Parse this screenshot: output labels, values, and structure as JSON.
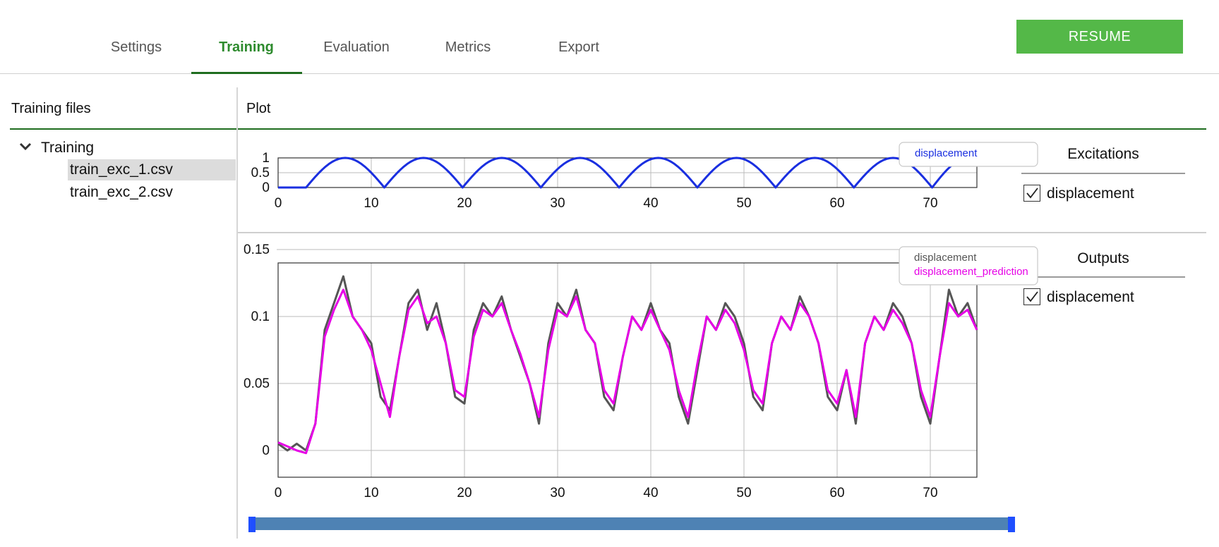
{
  "tabs": [
    {
      "label": "Settings",
      "active": false
    },
    {
      "label": "Training",
      "active": true
    },
    {
      "label": "Evaluation",
      "active": false
    },
    {
      "label": "Metrics",
      "active": false
    },
    {
      "label": "Export",
      "active": false
    }
  ],
  "resume_button": "RESUME",
  "left_panel": {
    "title": "Training files",
    "tree": {
      "root": "Training",
      "files": [
        "train_exc_1.csv",
        "train_exc_2.csv"
      ],
      "selected": "train_exc_1.csv"
    }
  },
  "plot_panel": {
    "title": "Plot"
  },
  "excitations": {
    "title": "Excitations",
    "items": [
      {
        "label": "displacement",
        "checked": true
      }
    ]
  },
  "outputs": {
    "title": "Outputs",
    "items": [
      {
        "label": "displacement",
        "checked": true
      }
    ]
  },
  "colors": {
    "accent": "#54b848",
    "tab_active": "#2e8b2e",
    "series_excitation": "#1a2fe0",
    "series_output": "#555555",
    "series_prediction": "#e600e6"
  },
  "slider": {
    "start": 0,
    "end": 1
  },
  "chart_data": [
    {
      "type": "line",
      "title": "",
      "xlabel": "",
      "ylabel": "",
      "xlim": [
        0,
        75
      ],
      "ylim": [
        0,
        1
      ],
      "xticks": [
        "0",
        "10",
        "20",
        "30",
        "40",
        "50",
        "60",
        "70"
      ],
      "yticks": [
        "0",
        "0.5",
        "1"
      ],
      "legend": [
        "displacement"
      ],
      "legend_position": "top-right",
      "series": [
        {
          "name": "displacement",
          "x": [
            0,
            3,
            7.2,
            11.4,
            15.6,
            19.8,
            24.0,
            28.2,
            32.4,
            36.6,
            40.8,
            45.0,
            49.2,
            53.4,
            57.6,
            61.8,
            66.0,
            70.2,
            74.4
          ],
          "values": [
            0,
            0,
            1,
            0,
            1,
            0,
            1,
            0,
            1,
            0,
            1,
            0,
            1,
            0,
            1,
            0,
            1,
            0,
            1
          ]
        }
      ]
    },
    {
      "type": "line",
      "title": "",
      "xlabel": "",
      "ylabel": "",
      "xlim": [
        0,
        75
      ],
      "ylim": [
        -0.02,
        0.14
      ],
      "xticks": [
        "0",
        "10",
        "20",
        "30",
        "40",
        "50",
        "60",
        "70"
      ],
      "yticks": [
        "0",
        "0.05",
        "0.1",
        "0.15"
      ],
      "legend": [
        "displacement",
        "displacement_prediction"
      ],
      "legend_position": "top-right",
      "series": [
        {
          "name": "displacement",
          "x": [
            0,
            1,
            2,
            3,
            4,
            5,
            6,
            7,
            8,
            9,
            10,
            11,
            12,
            13,
            14,
            15,
            16,
            17,
            18,
            19,
            20,
            21,
            22,
            23,
            24,
            25,
            26,
            27,
            28,
            29,
            30,
            31,
            32,
            33,
            34,
            35,
            36,
            37,
            38,
            39,
            40,
            41,
            42,
            43,
            44,
            45,
            46,
            47,
            48,
            49,
            50,
            51,
            52,
            53,
            54,
            55,
            56,
            57,
            58,
            59,
            60,
            61,
            62,
            63,
            64,
            65,
            66,
            67,
            68,
            69,
            70,
            71,
            72,
            73,
            74,
            75
          ],
          "values": [
            0.005,
            0.0,
            0.005,
            0.0,
            0.02,
            0.09,
            0.11,
            0.13,
            0.1,
            0.09,
            0.08,
            0.04,
            0.03,
            0.07,
            0.11,
            0.12,
            0.09,
            0.11,
            0.08,
            0.04,
            0.035,
            0.09,
            0.11,
            0.1,
            0.115,
            0.09,
            0.07,
            0.05,
            0.02,
            0.08,
            0.11,
            0.1,
            0.12,
            0.09,
            0.08,
            0.04,
            0.03,
            0.07,
            0.1,
            0.09,
            0.11,
            0.09,
            0.08,
            0.04,
            0.02,
            0.06,
            0.1,
            0.09,
            0.11,
            0.1,
            0.08,
            0.04,
            0.03,
            0.08,
            0.1,
            0.09,
            0.115,
            0.1,
            0.08,
            0.04,
            0.03,
            0.06,
            0.02,
            0.08,
            0.1,
            0.09,
            0.11,
            0.1,
            0.08,
            0.04,
            0.02,
            0.07,
            0.12,
            0.1,
            0.11,
            0.09
          ]
        },
        {
          "name": "displacement_prediction",
          "x": [
            0,
            1,
            2,
            3,
            4,
            5,
            6,
            7,
            8,
            9,
            10,
            11,
            12,
            13,
            14,
            15,
            16,
            17,
            18,
            19,
            20,
            21,
            22,
            23,
            24,
            25,
            26,
            27,
            28,
            29,
            30,
            31,
            32,
            33,
            34,
            35,
            36,
            37,
            38,
            39,
            40,
            41,
            42,
            43,
            44,
            45,
            46,
            47,
            48,
            49,
            50,
            51,
            52,
            53,
            54,
            55,
            56,
            57,
            58,
            59,
            60,
            61,
            62,
            63,
            64,
            65,
            66,
            67,
            68,
            69,
            70,
            71,
            72,
            73,
            74,
            75
          ],
          "values": [
            0.006,
            0.003,
            0.0,
            -0.002,
            0.02,
            0.085,
            0.105,
            0.12,
            0.1,
            0.09,
            0.075,
            0.05,
            0.025,
            0.07,
            0.105,
            0.115,
            0.095,
            0.1,
            0.08,
            0.045,
            0.04,
            0.085,
            0.105,
            0.1,
            0.11,
            0.09,
            0.072,
            0.05,
            0.025,
            0.075,
            0.105,
            0.1,
            0.115,
            0.09,
            0.08,
            0.045,
            0.035,
            0.07,
            0.1,
            0.09,
            0.105,
            0.09,
            0.075,
            0.045,
            0.025,
            0.065,
            0.1,
            0.09,
            0.105,
            0.095,
            0.075,
            0.045,
            0.035,
            0.08,
            0.1,
            0.09,
            0.11,
            0.1,
            0.08,
            0.045,
            0.035,
            0.06,
            0.025,
            0.08,
            0.1,
            0.09,
            0.105,
            0.095,
            0.08,
            0.045,
            0.025,
            0.07,
            0.11,
            0.1,
            0.105,
            0.09
          ]
        }
      ]
    }
  ]
}
